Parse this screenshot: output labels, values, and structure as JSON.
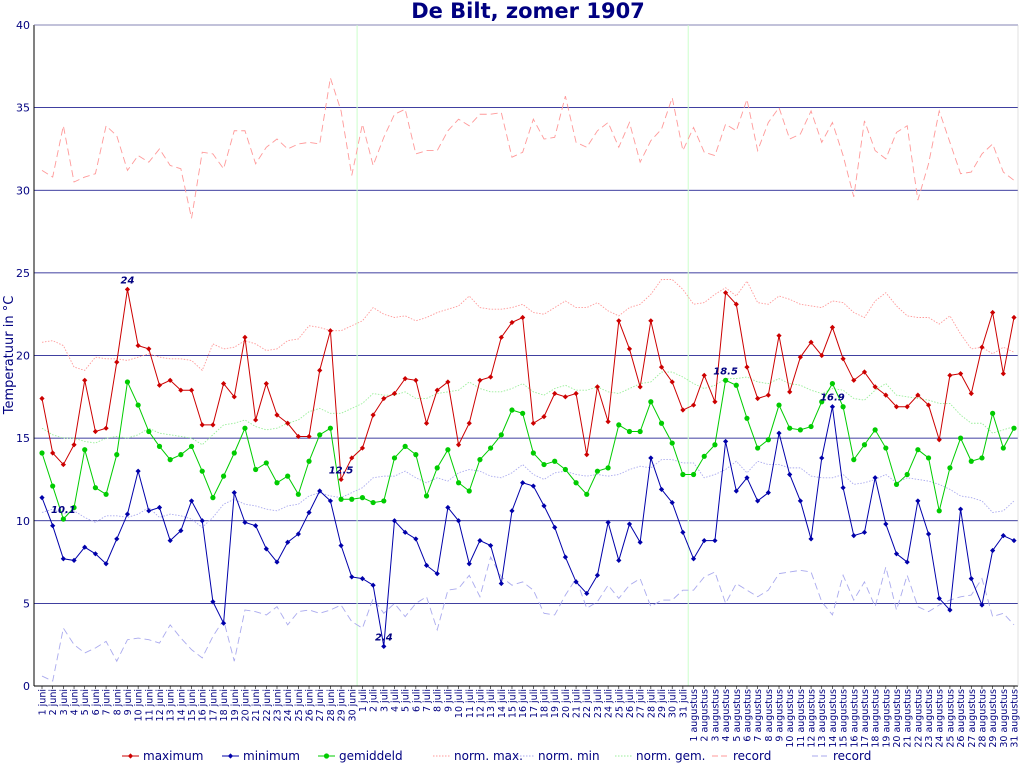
{
  "chart_data": {
    "type": "line",
    "title": "De Bilt, zomer 1907",
    "ylabel": "Temperatuur in °C",
    "xlabel": "",
    "ylim": [
      0,
      40
    ],
    "yticks": [
      0,
      5,
      10,
      15,
      20,
      25,
      30,
      35,
      40
    ],
    "grid": true,
    "legend_position": "bottom",
    "x": [
      "1 juni",
      "2 juni",
      "3 juni",
      "4 juni",
      "5 juni",
      "6 juni",
      "7 juni",
      "8 juni",
      "9 juni",
      "10 juni",
      "11 juni",
      "12 juni",
      "13 juni",
      "14 juni",
      "15 juni",
      "16 juni",
      "17 juni",
      "18 juni",
      "19 juni",
      "20 juni",
      "21 juni",
      "22 juni",
      "23 juni",
      "24 juni",
      "25 juni",
      "26 juni",
      "27 juni",
      "28 juni",
      "29 juni",
      "30 juni",
      "1 juli",
      "2 juli",
      "3 juli",
      "4 juli",
      "5 juli",
      "6 juli",
      "7 juli",
      "8 juli",
      "9 juli",
      "10 juli",
      "11 juli",
      "12 juli",
      "13 juli",
      "14 juli",
      "15 juli",
      "16 juli",
      "17 juli",
      "18 juli",
      "19 juli",
      "20 juli",
      "21 juli",
      "22 juli",
      "23 juli",
      "24 juli",
      "25 juli",
      "26 juli",
      "27 juli",
      "28 juli",
      "29 juli",
      "30 juli",
      "31 juli",
      "1 augustus",
      "2 augustus",
      "3 augustus",
      "4 augustus",
      "5 augustus",
      "6 augustus",
      "7 augustus",
      "8 augustus",
      "9 augustus",
      "10 augustus",
      "11 augustus",
      "12 augustus",
      "13 augustus",
      "14 augustus",
      "15 augustus",
      "16 augustus",
      "17 augustus",
      "18 augustus",
      "19 augustus",
      "20 augustus",
      "21 augustus",
      "22 augustus",
      "23 augustus",
      "24 augustus",
      "25 augustus",
      "26 augustus",
      "27 augustus",
      "28 augustus",
      "29 augustus",
      "30 augustus",
      "31 augustus"
    ],
    "series": [
      {
        "name": "maximum",
        "color": "#cc0000",
        "style": "solid-marker",
        "values": [
          17.4,
          14.1,
          13.4,
          14.6,
          18.5,
          15.4,
          15.6,
          19.6,
          24.0,
          20.6,
          20.4,
          18.2,
          18.5,
          17.9,
          17.9,
          15.8,
          15.8,
          18.3,
          17.5,
          21.1,
          16.1,
          18.3,
          16.4,
          15.9,
          15.1,
          15.1,
          19.1,
          21.5,
          12.5,
          13.8,
          14.4,
          16.4,
          17.4,
          17.7,
          18.6,
          18.5,
          15.9,
          17.9,
          18.4,
          14.6,
          15.9,
          18.5,
          18.7,
          21.1,
          22.0,
          22.3,
          15.9,
          16.3,
          17.7,
          17.5,
          17.7,
          14.0,
          18.1,
          16.0,
          22.1,
          20.4,
          18.1,
          22.1,
          19.3,
          18.4,
          16.7,
          17.0,
          18.8,
          17.2,
          23.8,
          23.1,
          19.3,
          17.4,
          17.6,
          21.2,
          17.8,
          19.9,
          20.8,
          20.0,
          21.7,
          19.8,
          18.5,
          19.0,
          18.1,
          17.6,
          16.9,
          16.9,
          17.6,
          17.0,
          14.9,
          18.8,
          18.9,
          17.7,
          20.5,
          22.6,
          18.9,
          22.3
        ]
      },
      {
        "name": "minimum",
        "color": "#0000aa",
        "style": "solid-marker",
        "values": [
          11.4,
          9.7,
          7.7,
          7.6,
          8.4,
          8.0,
          7.4,
          8.9,
          10.4,
          13.0,
          10.6,
          10.8,
          8.8,
          9.4,
          11.2,
          10.0,
          5.1,
          3.8,
          11.7,
          9.9,
          9.7,
          8.3,
          7.5,
          8.7,
          9.2,
          10.5,
          11.8,
          11.2,
          8.5,
          6.6,
          6.5,
          6.1,
          2.4,
          10.0,
          9.3,
          8.9,
          7.3,
          6.8,
          10.8,
          10.0,
          7.4,
          8.8,
          8.5,
          6.2,
          10.6,
          12.3,
          12.1,
          10.9,
          9.6,
          7.8,
          6.3,
          5.6,
          6.7,
          9.9,
          7.6,
          9.8,
          8.7,
          13.8,
          11.9,
          11.1,
          9.3,
          7.7,
          8.8,
          8.8,
          14.8,
          11.8,
          12.6,
          11.2,
          11.7,
          15.3,
          12.8,
          11.2,
          8.9,
          13.8,
          16.9,
          12.0,
          9.1,
          9.3,
          12.6,
          9.8,
          8.0,
          7.5,
          11.2,
          9.2,
          5.3,
          4.6,
          10.7,
          6.5,
          4.9,
          8.2,
          9.1,
          8.8
        ]
      },
      {
        "name": "gemiddeld",
        "color": "#00cc00",
        "style": "solid-marker",
        "values": [
          14.1,
          12.1,
          10.1,
          10.8,
          14.3,
          12.0,
          11.6,
          14.0,
          18.4,
          17.0,
          15.4,
          14.5,
          13.7,
          14.0,
          14.5,
          13.0,
          11.4,
          12.7,
          14.1,
          15.6,
          13.1,
          13.5,
          12.3,
          12.7,
          11.6,
          13.6,
          15.2,
          15.6,
          11.3,
          11.3,
          11.4,
          11.1,
          11.2,
          13.8,
          14.5,
          14.0,
          11.5,
          13.2,
          14.3,
          12.3,
          11.8,
          13.7,
          14.4,
          15.2,
          16.7,
          16.5,
          14.1,
          13.4,
          13.6,
          13.1,
          12.3,
          11.6,
          13.0,
          13.2,
          15.8,
          15.4,
          15.4,
          17.2,
          15.9,
          14.7,
          12.8,
          12.8,
          13.9,
          14.6,
          18.5,
          18.2,
          16.2,
          14.4,
          14.9,
          17.0,
          15.6,
          15.5,
          15.7,
          17.2,
          18.3,
          16.9,
          13.7,
          14.6,
          15.5,
          14.4,
          12.2,
          12.8,
          14.3,
          13.8,
          10.6,
          13.2,
          15.0,
          13.6,
          13.8,
          16.5,
          14.4,
          15.6
        ]
      },
      {
        "name": "norm. max.",
        "color": "#ff9999",
        "style": "dotted",
        "values": [
          20.8,
          20.9,
          20.6,
          19.3,
          19.1,
          19.9,
          19.8,
          19.8,
          19.7,
          19.9,
          20.1,
          19.9,
          19.8,
          19.8,
          19.7,
          19.1,
          20.7,
          20.4,
          20.5,
          20.9,
          20.7,
          20.3,
          20.4,
          20.9,
          21.0,
          21.8,
          21.7,
          21.5,
          21.5,
          21.8,
          22.1,
          22.9,
          22.5,
          22.3,
          22.4,
          22.1,
          22.3,
          22.6,
          22.8,
          23.0,
          23.6,
          22.9,
          22.8,
          22.8,
          22.9,
          23.1,
          22.6,
          22.5,
          22.9,
          23.3,
          22.9,
          22.9,
          23.2,
          22.7,
          22.4,
          22.9,
          23.1,
          23.7,
          24.6,
          24.6,
          24.0,
          23.1,
          23.2,
          23.7,
          24.1,
          23.6,
          24.5,
          23.2,
          23.1,
          23.6,
          23.4,
          23.1,
          23.0,
          22.9,
          23.3,
          23.2,
          22.6,
          22.3,
          23.3,
          23.8,
          23.0,
          22.4,
          22.3,
          22.3,
          21.9,
          22.4,
          21.3,
          20.4,
          20.5,
          20.1,
          20.5,
          20.2
        ]
      },
      {
        "name": "norm. min",
        "color": "#aaaaee",
        "style": "dotted",
        "values": [
          10.5,
          10.7,
          10.4,
          10.6,
          10.2,
          9.9,
          10.3,
          10.3,
          10.2,
          10.4,
          10.8,
          10.2,
          10.4,
          10.3,
          10.1,
          9.6,
          10.2,
          11.0,
          11.3,
          11.0,
          10.9,
          10.7,
          10.6,
          10.9,
          11.0,
          11.5,
          11.7,
          11.5,
          11.4,
          11.7,
          12.0,
          12.6,
          12.7,
          12.7,
          13.0,
          12.6,
          12.3,
          12.6,
          12.4,
          12.9,
          13.1,
          13.0,
          12.7,
          12.6,
          12.9,
          13.4,
          12.8,
          12.5,
          12.9,
          13.0,
          12.8,
          12.7,
          12.8,
          12.7,
          12.8,
          13.1,
          13.3,
          13.2,
          13.7,
          13.7,
          13.5,
          13.5,
          12.6,
          12.8,
          13.1,
          13.6,
          12.9,
          13.6,
          13.4,
          13.4,
          13.2,
          13.2,
          12.7,
          12.6,
          12.6,
          12.8,
          12.2,
          12.3,
          12.5,
          12.8,
          12.3,
          12.6,
          12.5,
          12.4,
          12.2,
          11.9,
          11.5,
          11.4,
          11.2,
          10.5,
          10.6,
          11.2
        ]
      },
      {
        "name": "norm. gem.",
        "color": "#99ee99",
        "style": "dotted",
        "values": [
          15.6,
          15.2,
          15.0,
          15.0,
          14.8,
          14.7,
          15.0,
          15.1,
          15.0,
          15.2,
          15.6,
          15.3,
          15.2,
          15.1,
          15.0,
          14.6,
          15.2,
          15.8,
          15.9,
          16.1,
          15.7,
          15.5,
          15.6,
          15.9,
          16.1,
          16.6,
          16.8,
          16.5,
          16.5,
          16.8,
          17.1,
          17.7,
          17.6,
          17.6,
          17.8,
          17.4,
          17.4,
          17.7,
          17.8,
          17.9,
          18.4,
          18.0,
          17.8,
          17.8,
          18.0,
          18.3,
          17.8,
          17.6,
          18.0,
          18.2,
          17.9,
          17.9,
          18.1,
          17.8,
          17.7,
          18.0,
          18.3,
          18.4,
          19.0,
          19.0,
          18.7,
          18.3,
          18.0,
          18.2,
          18.6,
          18.6,
          18.7,
          18.4,
          18.3,
          18.6,
          18.3,
          18.2,
          17.9,
          17.7,
          18.0,
          17.9,
          17.4,
          17.3,
          17.9,
          18.3,
          17.6,
          17.5,
          17.4,
          17.3,
          17.1,
          17.1,
          16.4,
          15.9,
          15.9,
          15.3,
          15.5,
          15.7
        ]
      },
      {
        "name": "record",
        "color": "#ff9999",
        "style": "dashed",
        "values": [
          31.2,
          30.8,
          33.9,
          30.5,
          30.8,
          31.0,
          33.9,
          33.3,
          31.2,
          32.1,
          31.7,
          32.5,
          31.5,
          31.3,
          28.3,
          32.3,
          32.2,
          31.3,
          33.6,
          33.6,
          31.6,
          32.6,
          33.1,
          32.5,
          32.8,
          32.9,
          32.8,
          36.8,
          34.8,
          30.9,
          34.0,
          31.5,
          33.2,
          34.6,
          34.9,
          32.2,
          32.4,
          32.4,
          33.6,
          34.3,
          33.9,
          34.6,
          34.6,
          34.7,
          32.0,
          32.3,
          34.3,
          33.1,
          33.2,
          35.7,
          32.9,
          32.6,
          33.6,
          34.1,
          32.6,
          34.1,
          31.7,
          33.0,
          33.7,
          35.6,
          32.4,
          33.8,
          32.3,
          32.1,
          34.0,
          33.6,
          35.5,
          32.4,
          34.1,
          35.0,
          33.1,
          33.4,
          34.8,
          32.9,
          34.1,
          32.1,
          29.6,
          34.2,
          32.4,
          31.9,
          33.5,
          33.9,
          29.4,
          31.6,
          34.8,
          32.9,
          31.0,
          31.1,
          32.2,
          32.8,
          31.1,
          30.6
        ]
      },
      {
        "name": "record",
        "color": "#aaaaee",
        "style": "dashed",
        "values": [
          0.6,
          0.3,
          3.5,
          2.5,
          2.0,
          2.3,
          2.7,
          1.5,
          2.8,
          2.9,
          2.8,
          2.6,
          3.7,
          2.9,
          2.2,
          1.7,
          3.0,
          4.0,
          1.5,
          4.6,
          4.5,
          4.3,
          4.8,
          3.7,
          4.5,
          4.6,
          4.4,
          4.6,
          4.9,
          3.9,
          3.5,
          5.3,
          4.4,
          5.0,
          4.2,
          5.0,
          5.4,
          3.4,
          5.8,
          5.9,
          6.7,
          5.4,
          7.8,
          6.6,
          6.1,
          6.3,
          5.8,
          4.4,
          4.3,
          5.5,
          6.5,
          4.7,
          5.1,
          6.1,
          5.3,
          6.1,
          6.5,
          4.8,
          5.2,
          5.2,
          5.8,
          5.8,
          6.6,
          6.9,
          5.0,
          6.2,
          5.8,
          5.4,
          5.8,
          6.8,
          6.9,
          7.0,
          6.9,
          5.1,
          4.3,
          6.7,
          5.2,
          6.3,
          4.8,
          7.2,
          4.6,
          6.7,
          4.8,
          4.5,
          4.9,
          5.2,
          5.4,
          5.5,
          6.5,
          4.2,
          4.4,
          3.7
        ]
      }
    ],
    "annotations": [
      {
        "text": "24",
        "x_index": 8,
        "y": 24.0
      },
      {
        "text": "10.1",
        "x_index": 2,
        "y": 10.1
      },
      {
        "text": "12.5",
        "x_index": 28,
        "y": 12.5
      },
      {
        "text": "2.4",
        "x_index": 32,
        "y": 2.4
      },
      {
        "text": "18.5",
        "x_index": 64,
        "y": 18.5
      },
      {
        "text": "16.9",
        "x_index": 74,
        "y": 16.9
      }
    ]
  },
  "legend": [
    {
      "label": "maximum",
      "color": "#cc0000",
      "style": "solid-marker"
    },
    {
      "label": "minimum",
      "color": "#0000aa",
      "style": "solid-marker"
    },
    {
      "label": "gemiddeld",
      "color": "#00cc00",
      "style": "solid-marker"
    },
    {
      "label": "norm. max.",
      "color": "#ff9999",
      "style": "dotted"
    },
    {
      "label": "norm. min",
      "color": "#aaaaee",
      "style": "dotted"
    },
    {
      "label": "norm. gem.",
      "color": "#99ee99",
      "style": "dotted"
    },
    {
      "label": "record",
      "color": "#ff9999",
      "style": "dashed"
    },
    {
      "label": "record",
      "color": "#aaaaee",
      "style": "dashed"
    }
  ],
  "colors": {
    "text": "#000080",
    "grid": "#000080",
    "axis": "#000000",
    "month_divider": "#ccffcc"
  }
}
